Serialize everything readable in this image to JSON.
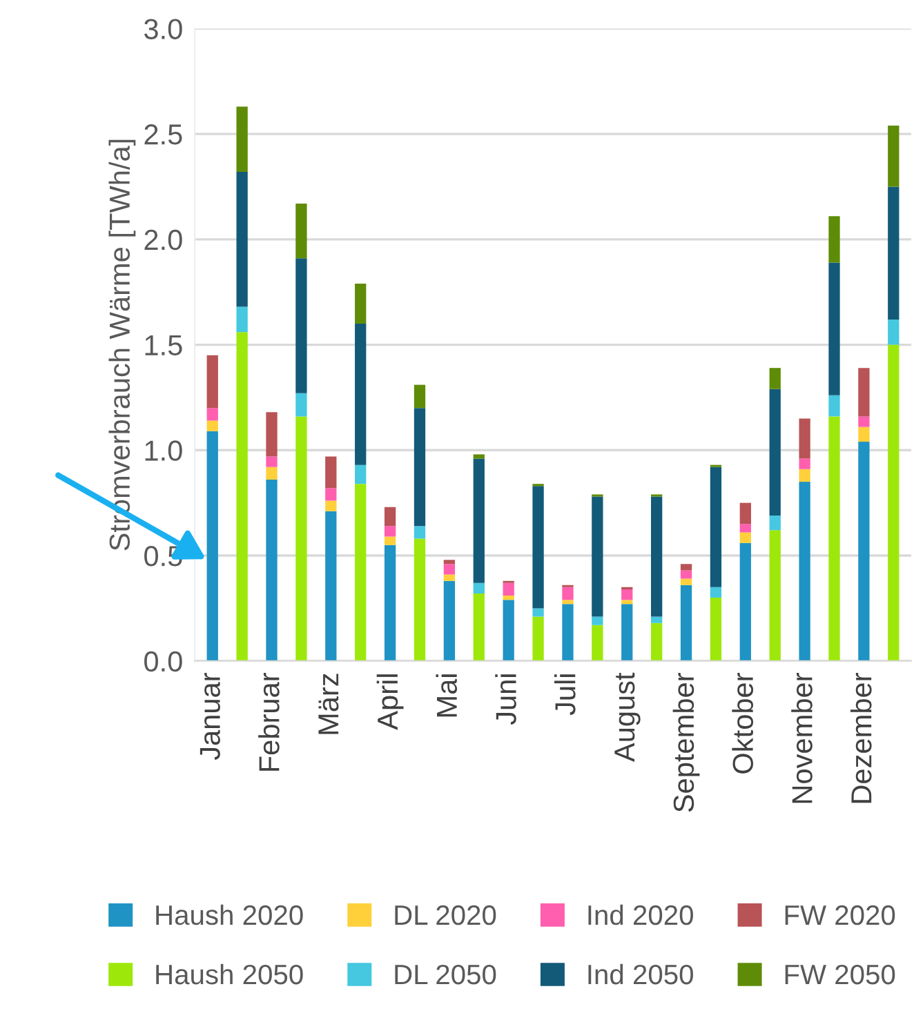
{
  "chart_data": {
    "type": "bar",
    "stacked": true,
    "ylabel": "Stromverbrauch Wärme [TWh/a]",
    "categories": [
      "Januar",
      null,
      "Februar",
      null,
      "März",
      null,
      "April",
      null,
      "Mai",
      null,
      "Juni",
      null,
      "Juli",
      null,
      "August",
      null,
      "September",
      null,
      "Oktober",
      null,
      "November",
      null,
      "Dezember",
      null
    ],
    "series": [
      {
        "name": "Haush 2020",
        "color": "#1f93c4",
        "values": [
          1.09,
          null,
          0.86,
          null,
          0.71,
          null,
          0.55,
          null,
          0.38,
          null,
          0.29,
          null,
          0.27,
          null,
          0.27,
          null,
          0.36,
          null,
          0.56,
          null,
          0.85,
          null,
          1.04,
          null
        ]
      },
      {
        "name": "DL 2020",
        "color": "#ffd03a",
        "values": [
          0.05,
          null,
          0.06,
          null,
          0.05,
          null,
          0.04,
          null,
          0.03,
          null,
          0.02,
          null,
          0.02,
          null,
          0.02,
          null,
          0.03,
          null,
          0.05,
          null,
          0.06,
          null,
          0.07,
          null
        ]
      },
      {
        "name": "Ind 2020",
        "color": "#ff5fae",
        "values": [
          0.06,
          null,
          0.05,
          null,
          0.06,
          null,
          0.05,
          null,
          0.05,
          null,
          0.06,
          null,
          0.06,
          null,
          0.05,
          null,
          0.04,
          null,
          0.04,
          null,
          0.05,
          null,
          0.05,
          null
        ]
      },
      {
        "name": "FW 2020",
        "color": "#b85356",
        "values": [
          0.25,
          null,
          0.21,
          null,
          0.15,
          null,
          0.09,
          null,
          0.02,
          null,
          0.01,
          null,
          0.01,
          null,
          0.01,
          null,
          0.03,
          null,
          0.1,
          null,
          0.19,
          null,
          0.23,
          null
        ]
      },
      {
        "name": "Haush 2050",
        "color": "#9de80a",
        "values": [
          null,
          1.56,
          null,
          1.16,
          null,
          0.84,
          null,
          0.58,
          null,
          0.32,
          null,
          0.21,
          null,
          0.17,
          null,
          0.18,
          null,
          0.3,
          null,
          0.62,
          null,
          1.16,
          null,
          1.5
        ]
      },
      {
        "name": "DL 2050",
        "color": "#45c8e0",
        "values": [
          null,
          0.12,
          null,
          0.11,
          null,
          0.09,
          null,
          0.06,
          null,
          0.05,
          null,
          0.04,
          null,
          0.04,
          null,
          0.03,
          null,
          0.05,
          null,
          0.07,
          null,
          0.1,
          null,
          0.12
        ]
      },
      {
        "name": "Ind 2050",
        "color": "#135a78",
        "values": [
          null,
          0.64,
          null,
          0.64,
          null,
          0.67,
          null,
          0.56,
          null,
          0.59,
          null,
          0.58,
          null,
          0.57,
          null,
          0.57,
          null,
          0.57,
          null,
          0.6,
          null,
          0.63,
          null,
          0.63
        ]
      },
      {
        "name": "FW 2050",
        "color": "#5f8c07",
        "values": [
          null,
          0.31,
          null,
          0.26,
          null,
          0.19,
          null,
          0.11,
          null,
          0.02,
          null,
          0.01,
          null,
          0.01,
          null,
          0.01,
          null,
          0.01,
          null,
          0.1,
          null,
          0.22,
          null,
          0.29
        ]
      }
    ],
    "ylim": [
      0,
      3.0
    ],
    "yticks": [
      {
        "value": 0,
        "label": "0.0"
      },
      {
        "value": 0.5,
        "label": "0.5"
      },
      {
        "value": 1.0,
        "label": "1.0"
      },
      {
        "value": 1.5,
        "label": "1.5"
      },
      {
        "value": 2.0,
        "label": "2.0"
      },
      {
        "value": 2.5,
        "label": "2.5"
      },
      {
        "value": 3.0,
        "label": "3.0"
      }
    ],
    "grid": "y",
    "legend": "bottom"
  }
}
